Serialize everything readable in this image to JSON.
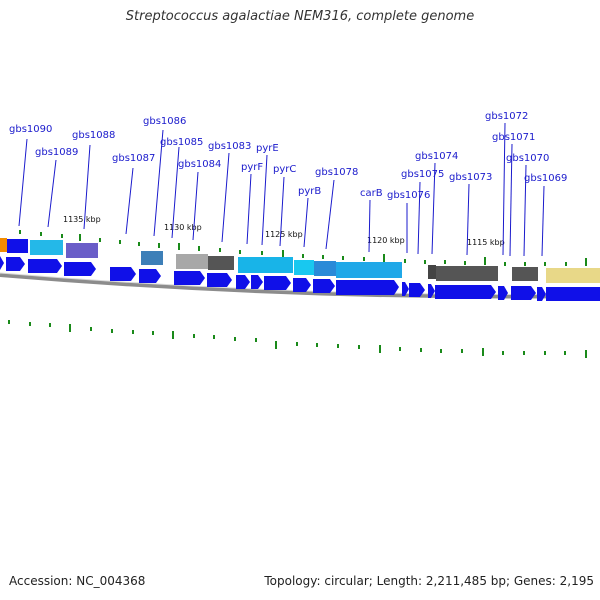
{
  "title": "Streptococcus agalactiae NEM316, complete genome",
  "footer": {
    "accession": "Accession: NC_004368",
    "summary": "Topology: circular; Length: 2,211,485 bp; Genes: 2,195"
  },
  "colors": {
    "gene_label": "#1a1acc",
    "cds_arrow": "#1010e8",
    "tick": "#1a8a1a",
    "backbone": "#8c8c8c"
  },
  "scale_labels": [
    "1135 kbp",
    "1130 kbp",
    "1125 kbp",
    "1120 kbp",
    "1115 kbp"
  ],
  "gene_labels": [
    "gbs1090",
    "gbs1089",
    "gbs1088",
    "gbs1087",
    "gbs1086",
    "gbs1085",
    "gbs1084",
    "gbs1083",
    "pyrF",
    "pyrE",
    "pyrC",
    "pyrB",
    "gbs1078",
    "carB",
    "gbs1076",
    "gbs1075",
    "gbs1074",
    "gbs1073",
    "gbs1072",
    "gbs1071",
    "gbs1070",
    "gbs1069"
  ]
}
